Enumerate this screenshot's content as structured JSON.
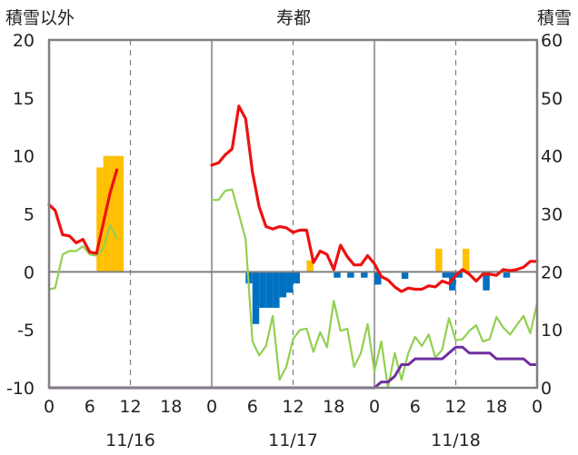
{
  "chart_data": {
    "type": "bar+line",
    "title": "寿都",
    "y_left_label": "積雪以外",
    "y_right_label": "積雪",
    "y_left_range": [
      -10,
      20
    ],
    "y_left_ticks": [
      "20",
      "15",
      "10",
      "5",
      "0",
      "-5",
      "-10"
    ],
    "y_right_range": [
      0,
      60
    ],
    "y_right_ticks": [
      "60",
      "50",
      "40",
      "30",
      "20",
      "10",
      "0"
    ],
    "x_range_hours": [
      0,
      72
    ],
    "x_hour_ticks": [
      "0",
      "6",
      "12",
      "18",
      "0",
      "6",
      "12",
      "18",
      "0",
      "6",
      "12",
      "18",
      "0"
    ],
    "x_date_labels": [
      "11/16",
      "11/17",
      "11/18"
    ],
    "colors": {
      "temperature": "#ee1111",
      "green_line": "#92d050",
      "snow_depth": "#7030a0",
      "snowfall_bar": "#ffc000",
      "decrease_bar": "#0070c0",
      "axis": "#808080"
    },
    "temperature_red": [
      [
        0,
        5.8
      ],
      [
        0.9,
        5.3
      ],
      [
        2,
        3.2
      ],
      [
        3,
        3.1
      ],
      [
        4,
        2.5
      ],
      [
        5,
        2.8
      ],
      [
        6,
        1.7
      ],
      [
        7,
        1.6
      ],
      [
        8,
        4.2
      ],
      [
        9,
        6.8
      ],
      [
        10,
        8.8
      ],
      [
        24,
        9.2
      ],
      [
        25,
        9.4
      ],
      [
        26,
        10.1
      ],
      [
        27,
        10.6
      ],
      [
        28,
        14.3
      ],
      [
        29,
        13.2
      ],
      [
        30,
        8.6
      ],
      [
        31,
        5.6
      ],
      [
        32,
        3.9
      ],
      [
        33,
        3.7
      ],
      [
        34,
        3.9
      ],
      [
        35,
        3.8
      ],
      [
        36,
        3.4
      ],
      [
        37,
        3.6
      ],
      [
        38,
        3.6
      ],
      [
        39,
        0.8
      ],
      [
        40,
        1.8
      ],
      [
        41,
        1.5
      ],
      [
        42,
        0.2
      ],
      [
        43,
        2.3
      ],
      [
        44,
        1.3
      ],
      [
        45,
        0.6
      ],
      [
        46,
        0.6
      ],
      [
        47,
        1.4
      ],
      [
        48,
        0.7
      ],
      [
        49,
        -0.4
      ],
      [
        50,
        -0.7
      ],
      [
        51,
        -1.3
      ],
      [
        52,
        -1.7
      ],
      [
        53,
        -1.4
      ],
      [
        54,
        -1.5
      ],
      [
        55,
        -1.5
      ],
      [
        56,
        -1.2
      ],
      [
        57,
        -1.3
      ],
      [
        58,
        -0.8
      ],
      [
        59,
        -1.0
      ],
      [
        60,
        -0.3
      ],
      [
        61,
        0.2
      ],
      [
        62,
        -0.2
      ],
      [
        63,
        -0.8
      ],
      [
        64,
        -0.2
      ],
      [
        65,
        -0.2
      ],
      [
        66,
        -0.3
      ],
      [
        67,
        0.2
      ],
      [
        68,
        0.1
      ],
      [
        69,
        0.2
      ],
      [
        70,
        0.4
      ],
      [
        71,
        0.9
      ],
      [
        72,
        0.9
      ]
    ],
    "green_line": [
      [
        0,
        -1.5
      ],
      [
        0.9,
        -1.4
      ],
      [
        2,
        1.5
      ],
      [
        3,
        1.8
      ],
      [
        4,
        1.8
      ],
      [
        5,
        2.2
      ],
      [
        6,
        1.5
      ],
      [
        7,
        1.4
      ],
      [
        8,
        2.0
      ],
      [
        9,
        4.0
      ],
      [
        10,
        2.9
      ],
      [
        24,
        6.2
      ],
      [
        25,
        6.2
      ],
      [
        26,
        7.0
      ],
      [
        27,
        7.1
      ],
      [
        28,
        5.0
      ],
      [
        29,
        2.8
      ],
      [
        30,
        -6.0
      ],
      [
        31,
        -7.2
      ],
      [
        32,
        -6.4
      ],
      [
        33,
        -3.8
      ],
      [
        34,
        -9.3
      ],
      [
        35,
        -8.2
      ],
      [
        36,
        -5.8
      ],
      [
        37,
        -5.0
      ],
      [
        38,
        -4.9
      ],
      [
        39,
        -6.9
      ],
      [
        40,
        -5.2
      ],
      [
        41,
        -6.5
      ],
      [
        42,
        -2.5
      ],
      [
        43,
        -5.1
      ],
      [
        44,
        -4.9
      ],
      [
        45,
        -8.2
      ],
      [
        46,
        -7.0
      ],
      [
        47,
        -4.5
      ],
      [
        48,
        -8.6
      ],
      [
        49,
        -6.0
      ],
      [
        50,
        -10
      ],
      [
        51,
        -7.0
      ],
      [
        52,
        -9.3
      ],
      [
        53,
        -7.0
      ],
      [
        54,
        -5.6
      ],
      [
        55,
        -6.4
      ],
      [
        56,
        -5.4
      ],
      [
        57,
        -7.4
      ],
      [
        58,
        -6.7
      ],
      [
        59,
        -4.0
      ],
      [
        60,
        -5.9
      ],
      [
        61,
        -5.8
      ],
      [
        62,
        -5.1
      ],
      [
        63,
        -4.6
      ],
      [
        64,
        -6.0
      ],
      [
        65,
        -5.8
      ],
      [
        66,
        -3.9
      ],
      [
        67,
        -4.8
      ],
      [
        68,
        -5.4
      ],
      [
        69,
        -4.6
      ],
      [
        70,
        -3.8
      ],
      [
        71,
        -5.3
      ],
      [
        72,
        -2.7
      ]
    ],
    "snow_depth_purple": [
      [
        0,
        0
      ],
      [
        10,
        0
      ],
      [
        24,
        0
      ],
      [
        48,
        0
      ],
      [
        49,
        1
      ],
      [
        50,
        1
      ],
      [
        51,
        2
      ],
      [
        52,
        4
      ],
      [
        53,
        4
      ],
      [
        54,
        5
      ],
      [
        55,
        5
      ],
      [
        56,
        5
      ],
      [
        57,
        5
      ],
      [
        58,
        5
      ],
      [
        59,
        6
      ],
      [
        60,
        7
      ],
      [
        61,
        7
      ],
      [
        62,
        6
      ],
      [
        63,
        6
      ],
      [
        64,
        6
      ],
      [
        65,
        6
      ],
      [
        66,
        5
      ],
      [
        67,
        5
      ],
      [
        68,
        5
      ],
      [
        69,
        5
      ],
      [
        70,
        5
      ],
      [
        71,
        4
      ],
      [
        72,
        4
      ]
    ],
    "snowfall_bars_left_units": [
      [
        7.5,
        9.0
      ],
      [
        8.5,
        10.0
      ],
      [
        9.5,
        10.0
      ],
      [
        10.5,
        10.0
      ],
      [
        38.5,
        1.0
      ],
      [
        57.5,
        2.0
      ],
      [
        61.5,
        2.0
      ]
    ],
    "decrease_bars_left_units": [
      [
        29.5,
        -1.0
      ],
      [
        30.5,
        -4.5
      ],
      [
        31.5,
        -3.1
      ],
      [
        32.5,
        -3.1
      ],
      [
        33.5,
        -3.1
      ],
      [
        34.5,
        -2.2
      ],
      [
        35.5,
        -1.8
      ],
      [
        36.5,
        -1.0
      ],
      [
        42.5,
        -0.5
      ],
      [
        44.5,
        -0.5
      ],
      [
        46.5,
        -0.5
      ],
      [
        48.5,
        -1.1
      ],
      [
        52.5,
        -0.6
      ],
      [
        58.5,
        -0.5
      ],
      [
        59.5,
        -1.6
      ],
      [
        60.5,
        -0.5
      ],
      [
        64.5,
        -1.6
      ],
      [
        67.5,
        -0.5
      ]
    ]
  }
}
